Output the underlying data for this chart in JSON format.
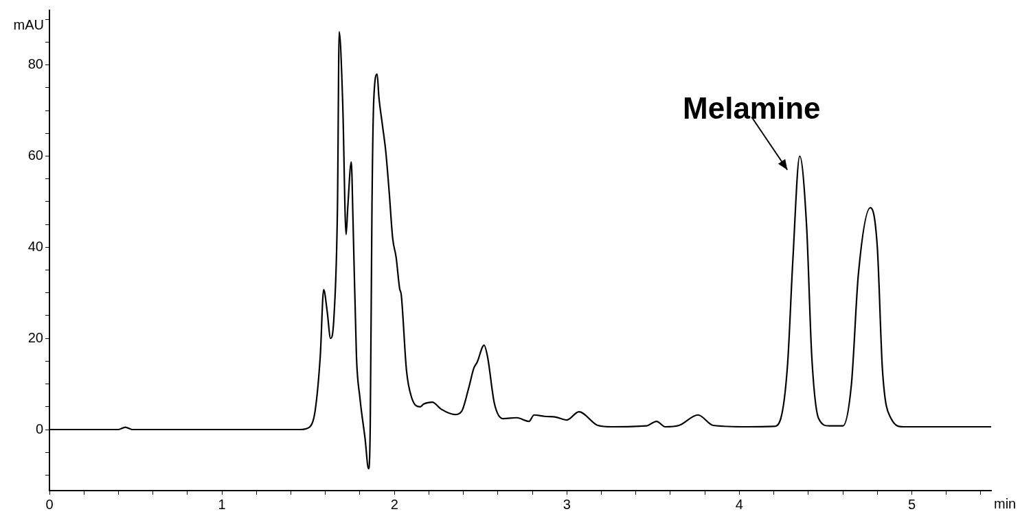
{
  "chart_data": {
    "type": "line",
    "xlabel": "min",
    "ylabel": "mAU",
    "x": [
      0,
      0.4,
      0.44,
      0.48,
      1.0,
      1.45,
      1.51,
      1.54,
      1.57,
      1.59,
      1.61,
      1.63,
      1.65,
      1.67,
      1.68,
      1.7,
      1.72,
      1.73,
      1.75,
      1.76,
      1.78,
      1.8,
      1.83,
      1.85,
      1.86,
      1.87,
      1.88,
      1.9,
      1.91,
      1.93,
      1.95,
      1.97,
      1.99,
      2.01,
      2.03,
      2.04,
      2.07,
      2.1,
      2.15,
      2.17,
      2.22,
      2.27,
      2.35,
      2.39,
      2.43,
      2.46,
      2.48,
      2.52,
      2.54,
      2.58,
      2.63,
      2.71,
      2.78,
      2.81,
      2.87,
      2.94,
      3.0,
      3.07,
      3.18,
      3.26,
      3.46,
      3.52,
      3.57,
      3.65,
      3.76,
      3.85,
      4.05,
      4.2,
      4.24,
      4.28,
      4.31,
      4.35,
      4.39,
      4.42,
      4.46,
      4.52,
      4.6,
      4.65,
      4.69,
      4.76,
      4.8,
      4.83,
      4.88,
      4.95,
      5.46
    ],
    "series": [
      {
        "color": "#000000",
        "values": [
          0,
          0,
          0.5,
          0,
          0,
          0,
          0.6,
          4,
          16,
          30.7,
          26,
          20,
          25,
          49,
          87.3,
          72,
          42.8,
          49,
          58.7,
          46,
          16,
          7,
          -2,
          -8.6,
          1,
          49,
          72,
          78,
          73,
          67,
          61,
          52,
          42,
          37.8,
          31,
          29.5,
          13,
          7,
          5,
          5.6,
          6,
          4.5,
          3.3,
          4,
          9,
          13.4,
          14.8,
          18.5,
          16,
          5.7,
          2.4,
          2.6,
          1.8,
          3.2,
          2.9,
          2.7,
          2.1,
          3.9,
          0.9,
          0.6,
          0.8,
          1.8,
          0.6,
          0.9,
          3.2,
          0.9,
          0.6,
          0.7,
          2.4,
          14.5,
          37,
          60,
          44.6,
          16,
          2.4,
          0.8,
          0.8,
          10,
          34,
          48.7,
          40,
          13,
          2.4,
          0.6,
          0.6
        ]
      }
    ],
    "xlim": [
      0,
      5.46
    ],
    "ylim": [
      -13.4,
      92
    ],
    "xticks": [
      0,
      {
        "value": 0.2,
        "label": null
      },
      {
        "value": 0.4,
        "label": null
      },
      {
        "value": 0.6,
        "label": null
      },
      {
        "value": 0.8,
        "label": null
      },
      1,
      {
        "value": 1.2,
        "label": null
      },
      {
        "value": 1.4,
        "label": null
      },
      {
        "value": 1.6,
        "label": null
      },
      {
        "value": 1.8,
        "label": null
      },
      2,
      {
        "value": 2.2,
        "label": null
      },
      {
        "value": 2.4,
        "label": null
      },
      {
        "value": 2.6,
        "label": null
      },
      {
        "value": 2.8,
        "label": null
      },
      3,
      {
        "value": 3.2,
        "label": null
      },
      {
        "value": 3.4,
        "label": null
      },
      {
        "value": 3.6,
        "label": null
      },
      {
        "value": 3.8,
        "label": null
      },
      4,
      {
        "value": 4.2,
        "label": null
      },
      {
        "value": 4.4,
        "label": null
      },
      {
        "value": 4.6,
        "label": null
      },
      {
        "value": 4.8,
        "label": null
      },
      5,
      {
        "value": 5.2,
        "label": null
      },
      {
        "value": 5.4,
        "label": null
      }
    ],
    "yticks": [
      {
        "value": -10,
        "label": null
      },
      {
        "value": -5,
        "label": null
      },
      0,
      {
        "value": 5,
        "label": null
      },
      {
        "value": 10,
        "label": null
      },
      {
        "value": 15,
        "label": null
      },
      20,
      {
        "value": 25,
        "label": null
      },
      {
        "value": 30,
        "label": null
      },
      {
        "value": 35,
        "label": null
      },
      40,
      {
        "value": 45,
        "label": null
      },
      {
        "value": 50,
        "label": null
      },
      {
        "value": 55,
        "label": null
      },
      60,
      {
        "value": 65,
        "label": null
      },
      {
        "value": 70,
        "label": null
      },
      {
        "value": 75,
        "label": null
      },
      80,
      {
        "value": 85,
        "label": null
      },
      {
        "value": 90,
        "label": null
      }
    ],
    "grid": false,
    "legend": false,
    "marker": "none",
    "line_style": "solid",
    "annotations": [
      {
        "text": "Melamine",
        "x": 4.35,
        "y": 60
      }
    ]
  }
}
